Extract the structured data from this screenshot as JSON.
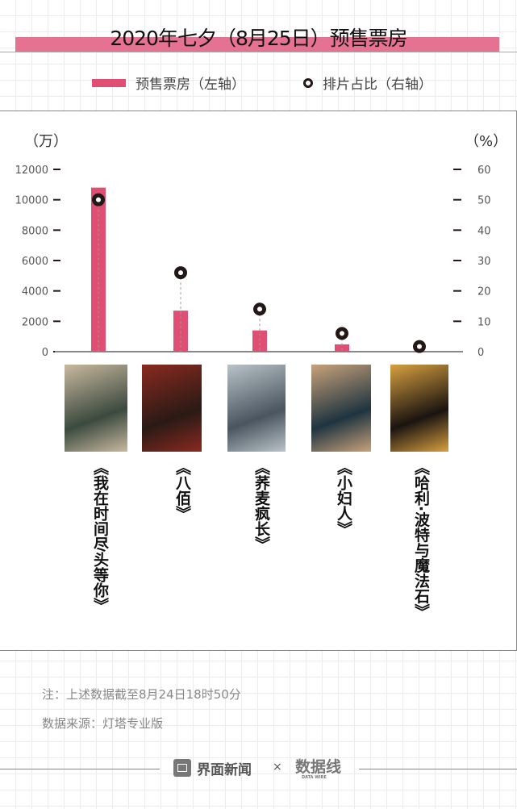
{
  "title": "2020年七夕（8月25日）预售票房",
  "legend": {
    "bar": "预售票房（左轴）",
    "dot": "排片占比（右轴）"
  },
  "colors": {
    "bar": "#e04f73",
    "dot": "#231815",
    "title_band": "#e57290"
  },
  "chart_data": {
    "type": "bar",
    "categories": [
      "《我在时间尽头等你》",
      "《八佰》",
      "《荞麦疯长》",
      "《小妇人》",
      "《哈利·波特与魔法石》"
    ],
    "series": [
      {
        "name": "预售票房（左轴）",
        "axis": "left",
        "type": "bar",
        "values": [
          10800,
          2700,
          1400,
          480,
          50
        ]
      },
      {
        "name": "排片占比（右轴）",
        "axis": "right",
        "type": "scatter",
        "values": [
          50,
          26,
          14,
          6,
          1.7
        ]
      }
    ],
    "left_axis": {
      "unit": "（万）",
      "ylim": [
        0,
        12000
      ],
      "ticks": [
        "0",
        "2000",
        "4000",
        "6000",
        "8000",
        "10000",
        "12000"
      ]
    },
    "right_axis": {
      "unit": "（%）",
      "ylim": [
        0,
        60
      ],
      "ticks": [
        "0",
        "10",
        "20",
        "30",
        "40",
        "50",
        "60"
      ]
    },
    "grid": false,
    "legend_position": "top"
  },
  "notes": {
    "note": "注：上述数据截至8月24日18时50分",
    "source": "数据来源：灯塔专业版"
  },
  "footer": {
    "brand1": "界面新闻",
    "sep": "×",
    "brand2": "数据线",
    "brand2_sub": "DATA WIRE"
  }
}
